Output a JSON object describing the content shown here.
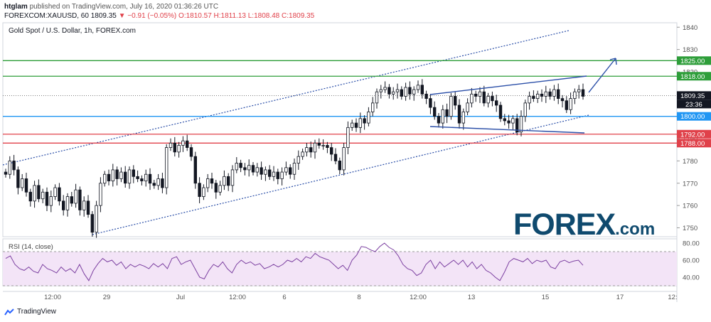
{
  "header": {
    "publisher": "htglam",
    "published_text": "published on TradingView.com, July 16, 2020 01:36:26 UTC",
    "symbol": "FOREXCOM:XAUUSD, 60",
    "last": "1809.35",
    "change": "−0.91 (−0.05%)",
    "open": "O:1810.57",
    "high": "H:1811.13",
    "low": "L:1808.48",
    "close": "C:1809.35"
  },
  "chart_title": "Gold Spot / U.S. Dollar, 1h, FOREX.com",
  "rsi_label": "RSI (14, close)",
  "footer": {
    "brand": "TradingView"
  },
  "watermark": {
    "text": "FOREX",
    "suffix": ".com"
  },
  "colors": {
    "green": "#2e9e3a",
    "blue": "#2196f3",
    "red": "#e0414a",
    "trend": "#2b4fa8",
    "rsi": "#7b3fa0",
    "rsi_band": "#f3e4f7"
  },
  "chart_data": [
    {
      "type": "candlestick",
      "title": "Gold Spot / U.S. Dollar, 1h, FOREX.com",
      "ylim": [
        1746,
        1842
      ],
      "y_ticks": [
        1750,
        1760,
        1770,
        1780,
        1790,
        1800,
        1810,
        1820,
        1830,
        1840
      ],
      "x_ticks": [
        "12:00",
        "29",
        "Jul",
        "12:00",
        "6",
        "8",
        "12:00",
        "13",
        "15",
        "17",
        "12:"
      ],
      "price_levels": [
        {
          "label": "1825.00",
          "value": 1825.0,
          "color": "#2e9e3a"
        },
        {
          "label": "1818.00",
          "value": 1818.0,
          "color": "#2e9e3a"
        },
        {
          "label": "1800.00",
          "value": 1800.0,
          "color": "#2196f3"
        },
        {
          "label": "1792.00",
          "value": 1792.0,
          "color": "#e0414a"
        },
        {
          "label": "1788.00",
          "value": 1788.0,
          "color": "#e0414a"
        }
      ],
      "last_price": "1809.35",
      "countdown": "23:36",
      "close_series": [
        1774,
        1780,
        1776,
        1768,
        1772,
        1766,
        1762,
        1769,
        1763,
        1766,
        1760,
        1764,
        1768,
        1762,
        1758,
        1764,
        1761,
        1767,
        1758,
        1762,
        1756,
        1748,
        1760,
        1770,
        1774,
        1771,
        1776,
        1772,
        1775,
        1770,
        1776,
        1773,
        1772,
        1771,
        1774,
        1770,
        1769,
        1772,
        1768,
        1786,
        1788,
        1784,
        1787,
        1789,
        1786,
        1782,
        1770,
        1764,
        1768,
        1772,
        1770,
        1766,
        1769,
        1773,
        1769,
        1776,
        1779,
        1777,
        1776,
        1778,
        1775,
        1777,
        1774,
        1776,
        1773,
        1775,
        1772,
        1775,
        1777,
        1774,
        1779,
        1782,
        1784,
        1786,
        1784,
        1788,
        1787,
        1787,
        1786,
        1783,
        1780,
        1776,
        1786,
        1795,
        1797,
        1795,
        1799,
        1797,
        1802,
        1806,
        1811,
        1812,
        1813,
        1810,
        1811,
        1812,
        1809,
        1813,
        1810,
        1812,
        1814,
        1810,
        1808,
        1804,
        1800,
        1797,
        1803,
        1800,
        1809,
        1805,
        1797,
        1802,
        1806,
        1810,
        1809,
        1811,
        1806,
        1809,
        1807,
        1805,
        1799,
        1798,
        1797,
        1799,
        1793,
        1800,
        1806,
        1809,
        1808,
        1810,
        1809,
        1811,
        1809,
        1812,
        1808,
        1807,
        1803,
        1808,
        1811,
        1812,
        1809
      ],
      "rsi": {
        "levels": [
          40,
          60,
          80
        ],
        "ylim": [
          30,
          85
        ],
        "band": [
          30,
          70
        ],
        "values": [
          62,
          65,
          55,
          50,
          48,
          52,
          47,
          45,
          55,
          50,
          48,
          45,
          52,
          47,
          50,
          45,
          55,
          44,
          36,
          48,
          56,
          62,
          58,
          60,
          54,
          58,
          50,
          55,
          52,
          55,
          53,
          50,
          56,
          52,
          56,
          50,
          62,
          64,
          55,
          58,
          60,
          50,
          40,
          38,
          48,
          55,
          52,
          58,
          50,
          45,
          55,
          60,
          56,
          58,
          54,
          56,
          50,
          52,
          55,
          52,
          55,
          60,
          58,
          62,
          58,
          64,
          62,
          68,
          64,
          62,
          60,
          55,
          50,
          54,
          48,
          60,
          66,
          76,
          75,
          72,
          70,
          76,
          80,
          75,
          72,
          65,
          55,
          50,
          48,
          42,
          45,
          55,
          60,
          50,
          58,
          52,
          56,
          60,
          55,
          60,
          52,
          58,
          50,
          55,
          48,
          45,
          40,
          36,
          46,
          58,
          62,
          60,
          58,
          62,
          56,
          60,
          58,
          60,
          52,
          50,
          58,
          60,
          57,
          59,
          60,
          54
        ]
      }
    }
  ]
}
